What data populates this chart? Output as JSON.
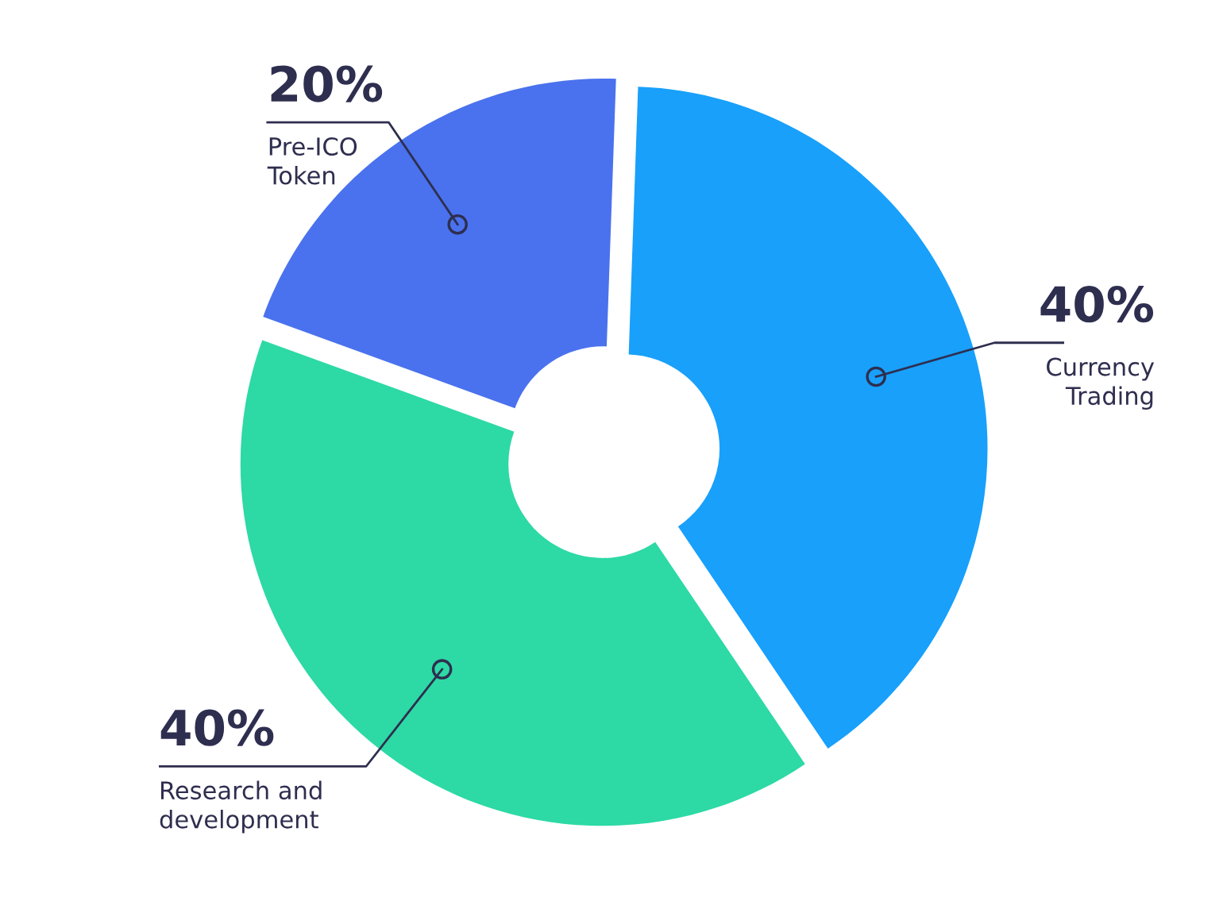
{
  "chart_data": {
    "type": "donut",
    "categories": [
      "Pre-ICO\nToken",
      "Currency\nTrading",
      "Research and\ndevelopment"
    ],
    "values": [
      20,
      40,
      40
    ],
    "colors": [
      "#4a72ee",
      "#18a0fb",
      "#2dd9a5"
    ],
    "value_labels": [
      "20%",
      "40%",
      "40%"
    ]
  }
}
